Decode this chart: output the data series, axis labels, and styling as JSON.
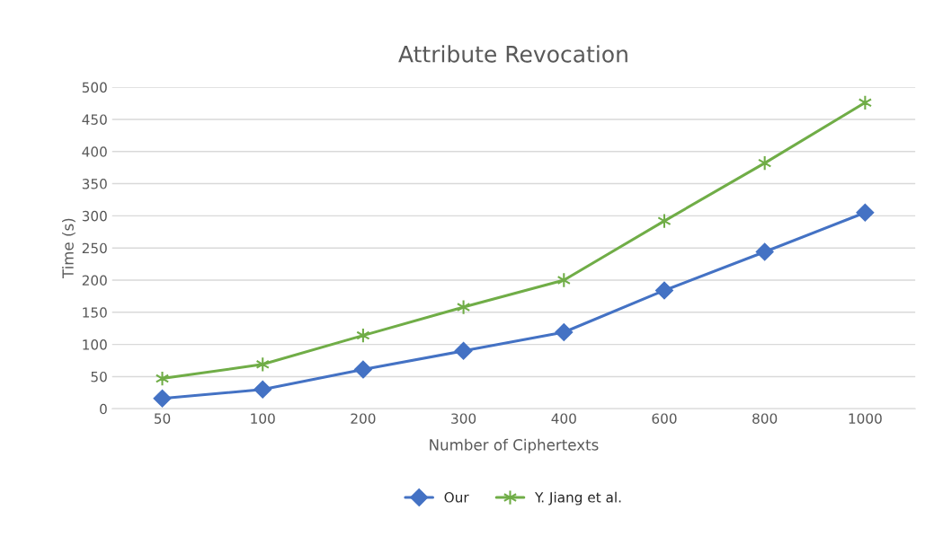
{
  "chart_data": {
    "type": "line",
    "title": "Attribute Revocation",
    "xlabel": "Number of Ciphertexts",
    "ylabel": "Time (s)",
    "categories": [
      "50",
      "100",
      "200",
      "300",
      "400",
      "600",
      "800",
      "1000"
    ],
    "series": [
      {
        "name": "Our",
        "color": "#4472c4",
        "marker": "diamond",
        "values": [
          16,
          30,
          61,
          90,
          119,
          184,
          244,
          305
        ]
      },
      {
        "name": "Y. Jiang et al.",
        "color": "#70ad47",
        "marker": "cross",
        "values": [
          47,
          69,
          114,
          158,
          200,
          292,
          382,
          476
        ]
      }
    ],
    "ylim": [
      0,
      500
    ],
    "yticks": [
      0,
      50,
      100,
      150,
      200,
      250,
      300,
      350,
      400,
      450,
      500
    ],
    "grid": "y",
    "legend": "bottom",
    "line_style": "solid"
  }
}
